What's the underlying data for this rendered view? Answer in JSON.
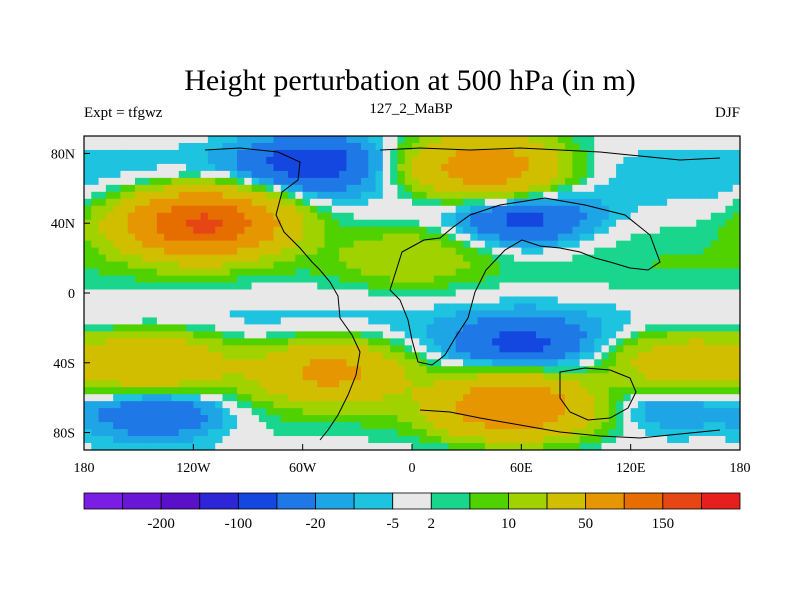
{
  "chart_data": {
    "type": "heatmap",
    "title": "Height perturbation at 500 hPa (in m)",
    "left_string": "Expt = tfgwz",
    "center_string": "127_2_MaBP",
    "right_string": "DJF",
    "xlim": [
      -180,
      180
    ],
    "ylim": [
      -90,
      90
    ],
    "x_ticks": [
      {
        "value": -180,
        "label": "180"
      },
      {
        "value": -120,
        "label": "120W"
      },
      {
        "value": -60,
        "label": "60W"
      },
      {
        "value": 0,
        "label": "0"
      },
      {
        "value": 60,
        "label": "60E"
      },
      {
        "value": 120,
        "label": "120E"
      },
      {
        "value": 180,
        "label": "180"
      }
    ],
    "y_ticks": [
      {
        "value": 80,
        "label": "80N"
      },
      {
        "value": 40,
        "label": "40N"
      },
      {
        "value": 0,
        "label": "0"
      },
      {
        "value": -40,
        "label": "40S"
      },
      {
        "value": -80,
        "label": "80S"
      }
    ],
    "colorbar": {
      "colors": [
        "#7a1ee6",
        "#6a16d6",
        "#5a10c8",
        "#2d25d8",
        "#1446e0",
        "#1e78e6",
        "#1ea5e6",
        "#1ec3e0",
        "#e8e8e8",
        "#19d68c",
        "#50d200",
        "#a0d200",
        "#d2be00",
        "#e69600",
        "#e66e00",
        "#e64614",
        "#e61e1e"
      ],
      "labels": [
        "-200",
        "-100",
        "-20",
        "-5",
        "2",
        "10",
        "50",
        "150"
      ],
      "label_after_box": [
        1,
        3,
        5,
        7,
        8,
        10,
        12,
        14
      ]
    },
    "anomaly_centers": [
      {
        "lon": -115,
        "lat": 40,
        "value": 160
      },
      {
        "lon": 40,
        "lat": 72,
        "value": 80
      },
      {
        "lon": 55,
        "lat": -65,
        "value": 90
      },
      {
        "lon": 0,
        "lat": 20,
        "value": 15
      },
      {
        "lon": -45,
        "lat": -45,
        "value": 60
      },
      {
        "lon": 150,
        "lat": -40,
        "value": 40
      },
      {
        "lon": -140,
        "lat": -40,
        "value": 50
      },
      {
        "lon": 60,
        "lat": 42,
        "value": -25
      },
      {
        "lon": -55,
        "lat": 75,
        "value": -25
      },
      {
        "lon": -140,
        "lat": -68,
        "value": -25
      },
      {
        "lon": 140,
        "lat": -65,
        "value": -15
      },
      {
        "lon": 60,
        "lat": -30,
        "value": -20
      },
      {
        "lon": -140,
        "lat": 8,
        "value": 2
      },
      {
        "lon": 140,
        "lat": 8,
        "value": 2
      }
    ]
  }
}
